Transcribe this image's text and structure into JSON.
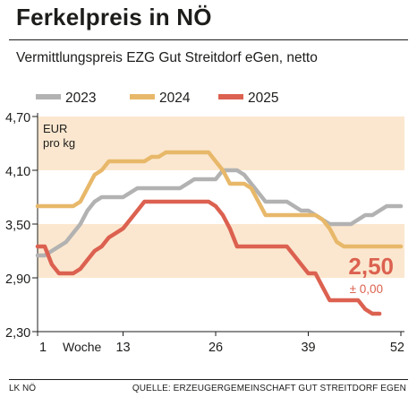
{
  "header": {
    "title": "Ferkelpreis in NÖ",
    "subtitle": "Vermittlungspreis EZG Gut Streitdorf eGen, netto"
  },
  "footer": {
    "left": "LK NÖ",
    "right": "QUELLE: ERZEUGERGEMEINSCHAFT GUT STREITDORF EGEN"
  },
  "colors": {
    "2023": "#b2b2b2",
    "2024": "#e8b86a",
    "2025": "#dc6150",
    "band": "#fbe7cf",
    "text": "#1d1d1b"
  },
  "chart_data": {
    "type": "line",
    "unit_label": "EUR\npro kg",
    "xlabel": "Woche",
    "x_ticks": [
      1,
      13,
      26,
      39,
      52
    ],
    "xlim": [
      1,
      52
    ],
    "y_ticks": [
      "4,70",
      "4,10",
      "3,50",
      "2,90",
      "2,30"
    ],
    "ylim": [
      2.3,
      4.7
    ],
    "bands": [
      [
        4.1,
        4.7
      ],
      [
        2.9,
        3.5
      ]
    ],
    "legend_position": "top",
    "annotation": {
      "value": "2,50",
      "change": "± 0,00"
    },
    "series": [
      {
        "name": "2023",
        "color_key": "2023",
        "points": [
          [
            1,
            3.15
          ],
          [
            2,
            3.15
          ],
          [
            3,
            3.2
          ],
          [
            4,
            3.25
          ],
          [
            5,
            3.3
          ],
          [
            6,
            3.4
          ],
          [
            7,
            3.5
          ],
          [
            8,
            3.65
          ],
          [
            9,
            3.75
          ],
          [
            10,
            3.8
          ],
          [
            11,
            3.8
          ],
          [
            12,
            3.8
          ],
          [
            13,
            3.8
          ],
          [
            14,
            3.85
          ],
          [
            15,
            3.9
          ],
          [
            16,
            3.9
          ],
          [
            17,
            3.9
          ],
          [
            18,
            3.9
          ],
          [
            19,
            3.9
          ],
          [
            20,
            3.9
          ],
          [
            21,
            3.9
          ],
          [
            22,
            3.95
          ],
          [
            23,
            4.0
          ],
          [
            24,
            4.0
          ],
          [
            25,
            4.0
          ],
          [
            26,
            4.0
          ],
          [
            27,
            4.1
          ],
          [
            28,
            4.1
          ],
          [
            29,
            4.1
          ],
          [
            30,
            4.05
          ],
          [
            31,
            3.95
          ],
          [
            32,
            3.85
          ],
          [
            33,
            3.75
          ],
          [
            34,
            3.75
          ],
          [
            35,
            3.75
          ],
          [
            36,
            3.75
          ],
          [
            37,
            3.7
          ],
          [
            38,
            3.65
          ],
          [
            39,
            3.65
          ],
          [
            40,
            3.6
          ],
          [
            41,
            3.55
          ],
          [
            42,
            3.5
          ],
          [
            43,
            3.5
          ],
          [
            44,
            3.5
          ],
          [
            45,
            3.5
          ],
          [
            46,
            3.55
          ],
          [
            47,
            3.6
          ],
          [
            48,
            3.6
          ],
          [
            49,
            3.65
          ],
          [
            50,
            3.7
          ],
          [
            51,
            3.7
          ],
          [
            52,
            3.7
          ]
        ]
      },
      {
        "name": "2024",
        "color_key": "2024",
        "points": [
          [
            1,
            3.7
          ],
          [
            2,
            3.7
          ],
          [
            3,
            3.7
          ],
          [
            4,
            3.7
          ],
          [
            5,
            3.7
          ],
          [
            6,
            3.7
          ],
          [
            7,
            3.75
          ],
          [
            8,
            3.9
          ],
          [
            9,
            4.05
          ],
          [
            10,
            4.1
          ],
          [
            11,
            4.2
          ],
          [
            12,
            4.2
          ],
          [
            13,
            4.2
          ],
          [
            14,
            4.2
          ],
          [
            15,
            4.2
          ],
          [
            16,
            4.2
          ],
          [
            17,
            4.25
          ],
          [
            18,
            4.25
          ],
          [
            19,
            4.3
          ],
          [
            20,
            4.3
          ],
          [
            21,
            4.3
          ],
          [
            22,
            4.3
          ],
          [
            23,
            4.3
          ],
          [
            24,
            4.3
          ],
          [
            25,
            4.3
          ],
          [
            26,
            4.2
          ],
          [
            27,
            4.1
          ],
          [
            28,
            3.95
          ],
          [
            29,
            3.95
          ],
          [
            30,
            3.95
          ],
          [
            31,
            3.9
          ],
          [
            32,
            3.75
          ],
          [
            33,
            3.6
          ],
          [
            34,
            3.6
          ],
          [
            35,
            3.6
          ],
          [
            36,
            3.6
          ],
          [
            37,
            3.6
          ],
          [
            38,
            3.6
          ],
          [
            39,
            3.6
          ],
          [
            40,
            3.6
          ],
          [
            41,
            3.55
          ],
          [
            42,
            3.45
          ],
          [
            43,
            3.3
          ],
          [
            44,
            3.25
          ],
          [
            45,
            3.25
          ],
          [
            46,
            3.25
          ],
          [
            47,
            3.25
          ],
          [
            48,
            3.25
          ],
          [
            49,
            3.25
          ],
          [
            50,
            3.25
          ],
          [
            51,
            3.25
          ],
          [
            52,
            3.25
          ]
        ]
      },
      {
        "name": "2025",
        "color_key": "2025",
        "points": [
          [
            1,
            3.25
          ],
          [
            2,
            3.25
          ],
          [
            3,
            3.05
          ],
          [
            4,
            2.95
          ],
          [
            5,
            2.95
          ],
          [
            6,
            2.95
          ],
          [
            7,
            3.0
          ],
          [
            8,
            3.1
          ],
          [
            9,
            3.2
          ],
          [
            10,
            3.25
          ],
          [
            11,
            3.35
          ],
          [
            12,
            3.4
          ],
          [
            13,
            3.45
          ],
          [
            14,
            3.55
          ],
          [
            15,
            3.65
          ],
          [
            16,
            3.75
          ],
          [
            17,
            3.75
          ],
          [
            18,
            3.75
          ],
          [
            19,
            3.75
          ],
          [
            20,
            3.75
          ],
          [
            21,
            3.75
          ],
          [
            22,
            3.75
          ],
          [
            23,
            3.75
          ],
          [
            24,
            3.75
          ],
          [
            25,
            3.75
          ],
          [
            26,
            3.7
          ],
          [
            27,
            3.6
          ],
          [
            28,
            3.45
          ],
          [
            29,
            3.25
          ],
          [
            30,
            3.25
          ],
          [
            31,
            3.25
          ],
          [
            32,
            3.25
          ],
          [
            33,
            3.25
          ],
          [
            34,
            3.25
          ],
          [
            35,
            3.25
          ],
          [
            36,
            3.25
          ],
          [
            37,
            3.15
          ],
          [
            38,
            3.05
          ],
          [
            39,
            2.95
          ],
          [
            40,
            2.95
          ],
          [
            41,
            2.8
          ],
          [
            42,
            2.65
          ],
          [
            43,
            2.65
          ],
          [
            44,
            2.65
          ],
          [
            45,
            2.65
          ],
          [
            46,
            2.65
          ],
          [
            47,
            2.55
          ],
          [
            48,
            2.5
          ],
          [
            49,
            2.5
          ]
        ]
      }
    ]
  }
}
